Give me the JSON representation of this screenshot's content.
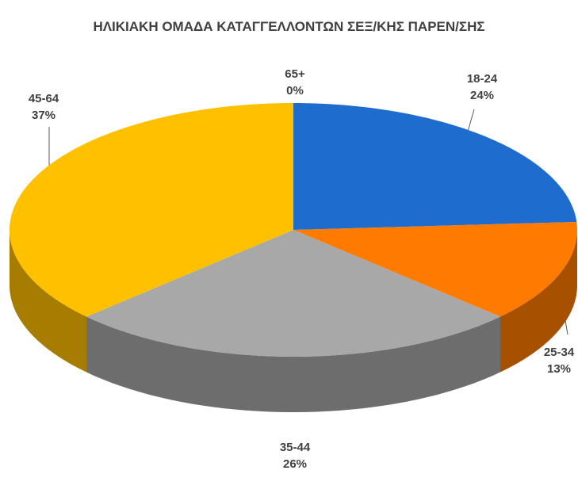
{
  "chart_data": {
    "type": "pie",
    "title": "ΗΛΙΚΙΑΚΗ ΟΜΑΔΑ ΚΑΤΑΓΓΕΛΛΟΝΤΩΝ ΣΕΞ/ΚΗΣ ΠΑΡΕΝ/ΣΗΣ",
    "categories": [
      "18-24",
      "25-34",
      "35-44",
      "45-64",
      "65+"
    ],
    "values": [
      24,
      13,
      26,
      37,
      0
    ],
    "value_labels": [
      "24%",
      "13%",
      "26%",
      "37%",
      "0%"
    ],
    "colors": [
      "#1f6ccf",
      "#ff7b00",
      "#a8a8a8",
      "#ffc000",
      "#4a7fc0"
    ]
  }
}
